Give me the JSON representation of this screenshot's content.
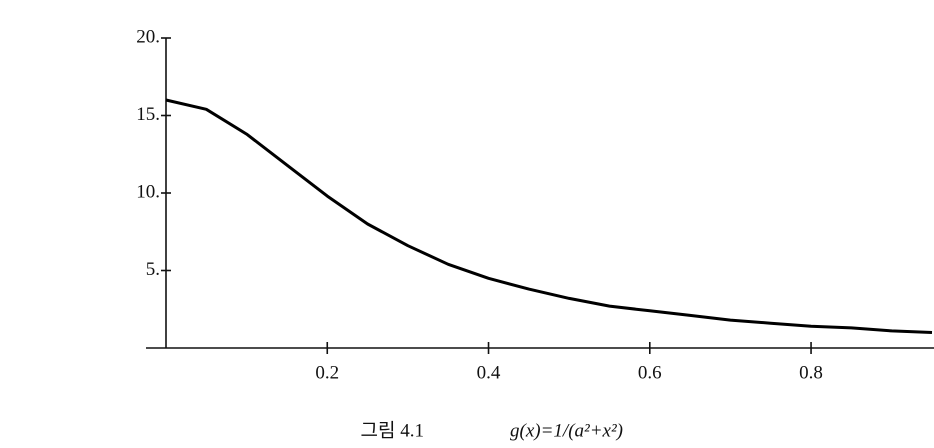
{
  "chart_data": {
    "type": "line",
    "caption": "그림 4.1",
    "formula": "g(x)=1/(a²+x²)",
    "x": [
      0,
      0.05,
      0.1,
      0.15,
      0.2,
      0.25,
      0.3,
      0.35,
      0.4,
      0.45,
      0.5,
      0.55,
      0.6,
      0.65,
      0.7,
      0.75,
      0.8,
      0.85,
      0.9,
      0.95
    ],
    "values": [
      16,
      15.4,
      13.8,
      11.8,
      9.8,
      8,
      6.6,
      5.4,
      4.5,
      3.8,
      3.2,
      2.7,
      2.4,
      2.1,
      1.8,
      1.6,
      1.4,
      1.3,
      1.1,
      1.0
    ],
    "color": "#000000",
    "xlim": [
      0,
      0.95
    ],
    "ylim": [
      0,
      20
    ],
    "xticks": [
      0.2,
      0.4,
      0.6,
      0.8
    ],
    "yticks": [
      {
        "value": 5,
        "label": "5."
      },
      {
        "value": 10,
        "label": "10."
      },
      {
        "value": 15,
        "label": "15."
      },
      {
        "value": 20,
        "label": "20."
      }
    ],
    "grid": false
  }
}
